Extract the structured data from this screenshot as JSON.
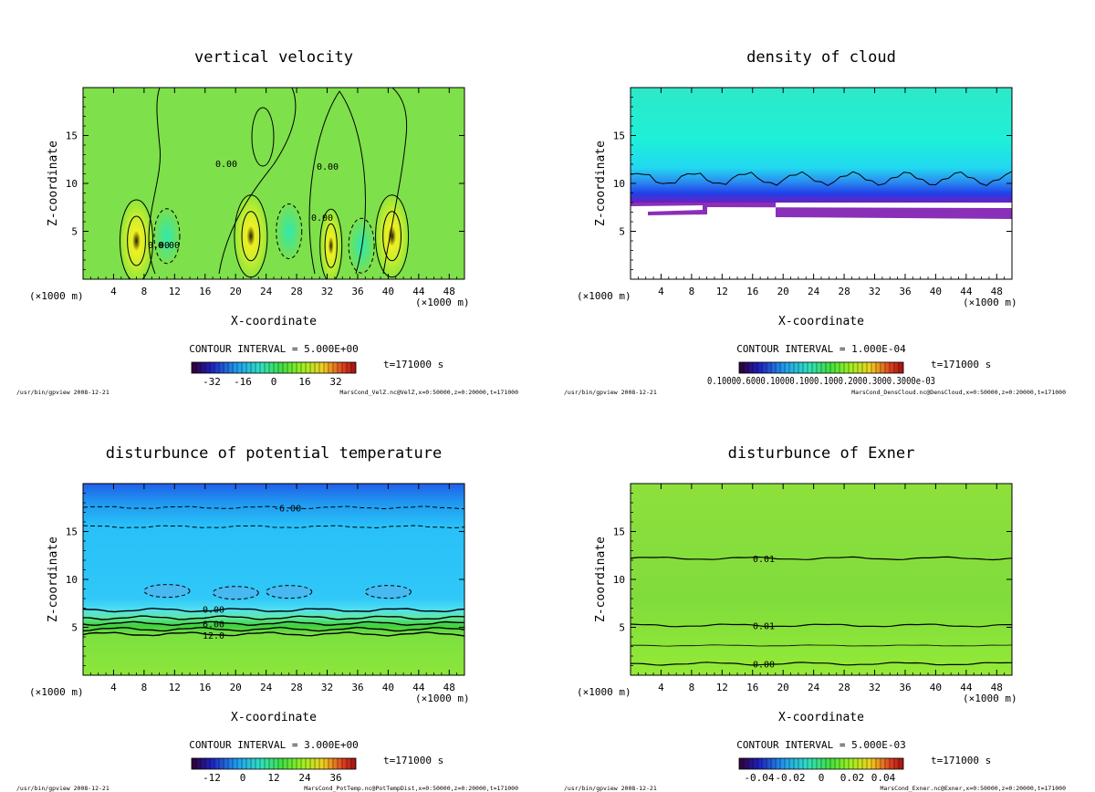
{
  "common": {
    "xlabel": "X-coordinate",
    "ylabel": "Z-coordinate",
    "x_unit_left": "(×1000 m)",
    "x_unit_right": "(×1000 m)",
    "time": "t=171000 s",
    "program": "/usr/bin/gpview   2008-12-21",
    "x_ticks": [
      "4",
      "8",
      "12",
      "16",
      "20",
      "24",
      "28",
      "32",
      "36",
      "40",
      "44",
      "48"
    ],
    "y_ticks": [
      "5",
      "10",
      "15"
    ]
  },
  "chart_data": [
    {
      "type": "heatmap",
      "title": "vertical velocity",
      "xlabel": "X-coordinate",
      "ylabel": "Z-coordinate",
      "xlim": [
        0,
        50
      ],
      "ylim": [
        0,
        20
      ],
      "contour_interval": "CONTOUR INTERVAL = 5.000E+00",
      "colorbar_ticks": [
        "-32",
        "-16",
        "0",
        "16",
        "32"
      ],
      "source": "MarsCond_VelZ.nc@VelZ,x=0:50000,z=0:20000,t=171000",
      "contour_labels": [
        "0.00",
        "0.00",
        "0.00",
        "0.00",
        "0.00"
      ],
      "features": [
        {
          "x": 7,
          "z": 4,
          "value": 30
        },
        {
          "x": 22,
          "z": 4.5,
          "value": 30
        },
        {
          "x": 32.5,
          "z": 3.5,
          "value": 20
        },
        {
          "x": 40.5,
          "z": 4.5,
          "value": 30
        },
        {
          "x": 11,
          "z": 4.5,
          "value": -12
        },
        {
          "x": 36.5,
          "z": 3.5,
          "value": -15
        },
        {
          "x": 27,
          "z": 5,
          "value": -8
        }
      ]
    },
    {
      "type": "heatmap",
      "title": "density of cloud",
      "xlabel": "X-coordinate",
      "ylabel": "Z-coordinate",
      "xlim": [
        0,
        50
      ],
      "ylim": [
        0,
        20
      ],
      "contour_interval": "CONTOUR INTERVAL = 1.000E-04",
      "colorbar_tick_text": "0.10000.6000.10000.1000.1000.2000.3000.3000e-03",
      "source": "MarsCond_DensCloud.nc@DensCloud,x=0:50000,z=0:20000,t=171000",
      "cloud_base_z": 8,
      "cloud_top_z": 20
    },
    {
      "type": "heatmap",
      "title": "disturbunce of potential temperature",
      "xlabel": "X-coordinate",
      "ylabel": "Z-coordinate",
      "xlim": [
        0,
        50
      ],
      "ylim": [
        0,
        20
      ],
      "contour_interval": "CONTOUR INTERVAL = 3.000E+00",
      "colorbar_ticks": [
        "-12",
        "0",
        "12",
        "24",
        "36"
      ],
      "source": "MarsCond_PotTemp.nc@PotTempDist,x=0:50000,z=0:20000,t=171000",
      "contour_labels": [
        "-6.00",
        "0.00",
        "6.00",
        "12.0"
      ],
      "contours": [
        {
          "z": 17.5,
          "value": -6
        },
        {
          "z": 15.5,
          "value": -3
        },
        {
          "z": 6.8,
          "value": 0
        },
        {
          "z": 6.0,
          "value": 3
        },
        {
          "z": 5.4,
          "value": 6
        },
        {
          "z": 4.8,
          "value": 9
        },
        {
          "z": 4.3,
          "value": 12
        }
      ]
    },
    {
      "type": "heatmap",
      "title": "disturbunce of Exner",
      "xlabel": "X-coordinate",
      "ylabel": "Z-coordinate",
      "xlim": [
        0,
        50
      ],
      "ylim": [
        0,
        20
      ],
      "contour_interval": "CONTOUR INTERVAL = 5.000E-03",
      "colorbar_ticks": [
        "-0.04",
        "-0.02",
        "0",
        "0.02",
        "0.04"
      ],
      "source": "MarsCond_Exner.nc@Exner,x=0:50000,z=0:20000,t=171000",
      "contour_labels": [
        "0.01",
        "0.01",
        "0.00"
      ],
      "contours": [
        {
          "z": 12.2,
          "value": 0.01
        },
        {
          "z": 5.2,
          "value": 0.01
        },
        {
          "z": 1.2,
          "value": 0.0
        }
      ]
    }
  ]
}
